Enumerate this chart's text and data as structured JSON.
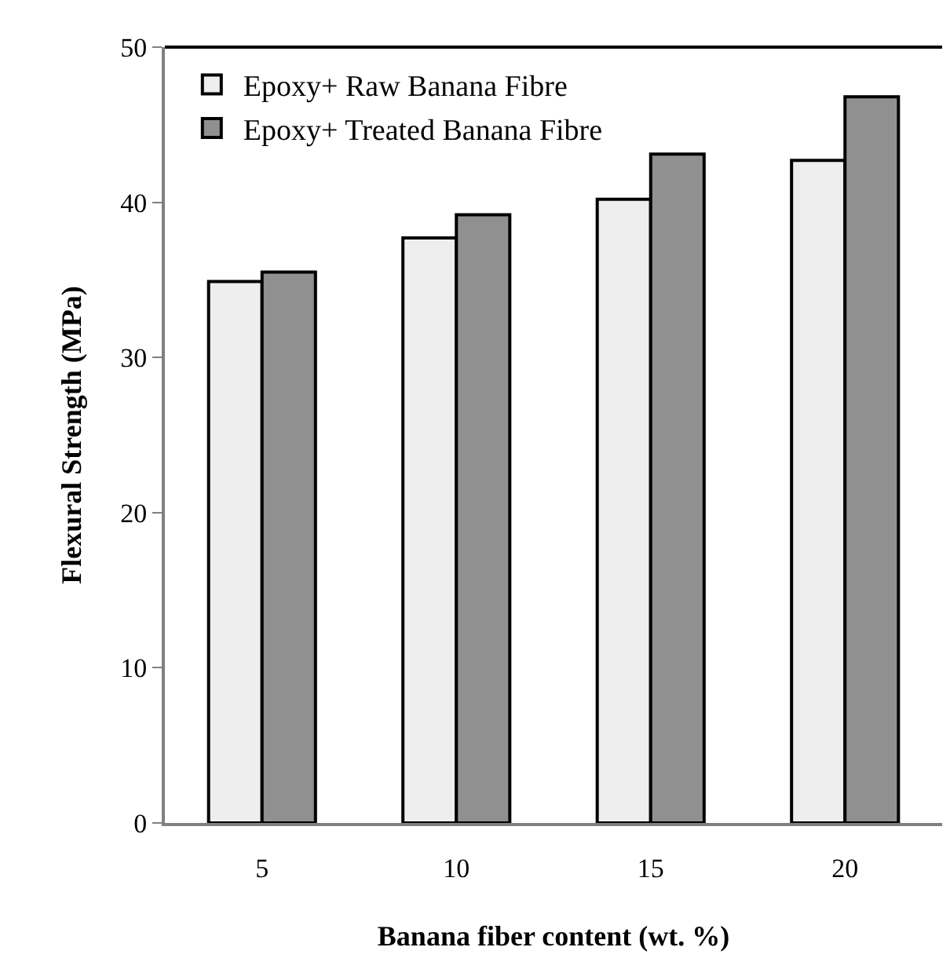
{
  "chart_data": {
    "type": "bar",
    "xlabel": "Banana fiber content (wt. %)",
    "ylabel": "Flexural Strength (MPa)",
    "categories": [
      "5",
      "10",
      "15",
      "20"
    ],
    "series": [
      {
        "name": "Epoxy+ Raw Banana Fibre",
        "color": "#eeeeee",
        "values": [
          34.9,
          37.7,
          40.2,
          42.7
        ]
      },
      {
        "name": "Epoxy+ Treated Banana Fibre",
        "color": "#909090",
        "values": [
          35.5,
          39.2,
          43.1,
          46.8
        ]
      }
    ],
    "ylim": [
      0,
      50
    ],
    "yticks": [
      0,
      10,
      20,
      30,
      40,
      50
    ],
    "grid": false,
    "legend": "top left"
  }
}
